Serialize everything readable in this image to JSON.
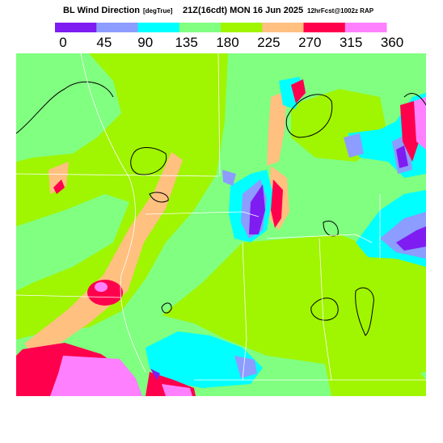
{
  "header": {
    "title_parts": [
      "BL Wind Direction",
      "[degTrue]",
      "21Z(16cdt) MON 16 Jun 2025",
      "12hrFcst@1002z RAP"
    ]
  },
  "legend": {
    "colors": [
      "#7f1cf2",
      "#8c9cff",
      "#00ffff",
      "#80ff80",
      "#a0f500",
      "#ffc080",
      "#ff004c",
      "#ff80ff"
    ],
    "labels": [
      0,
      45,
      90,
      135,
      180,
      225,
      270,
      315,
      360
    ]
  }
}
